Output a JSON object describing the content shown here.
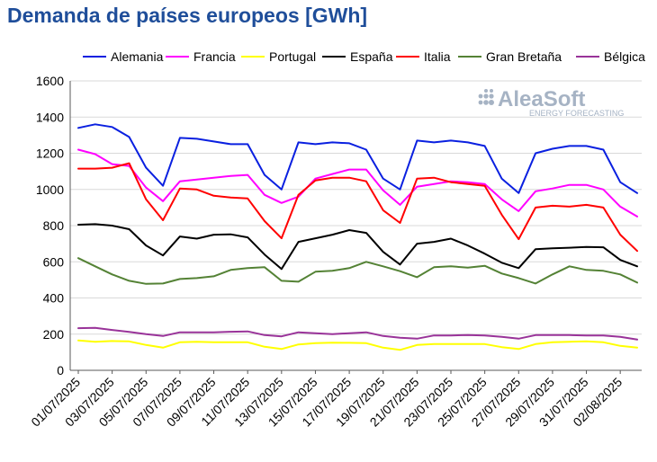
{
  "colors": {
    "title": "#1f4e9a",
    "grid": "#d9d9d9",
    "axis": "#595959",
    "text": "#000000",
    "logo": "#a6b3c4"
  },
  "logo": {
    "name": "AleaSoft",
    "tagline": "ENERGY FORECASTING"
  },
  "chart_data": {
    "type": "line",
    "title": "Demanda de países europeos [GWh]",
    "xlabel": "",
    "ylabel": "",
    "ylim": [
      0,
      1600
    ],
    "yticks": [
      0,
      200,
      400,
      600,
      800,
      1000,
      1200,
      1400,
      1600
    ],
    "grid": true,
    "legend_position": "top",
    "x": [
      "01/07/2025",
      "02/07/2025",
      "03/07/2025",
      "04/07/2025",
      "05/07/2025",
      "06/07/2025",
      "07/07/2025",
      "08/07/2025",
      "09/07/2025",
      "10/07/2025",
      "11/07/2025",
      "12/07/2025",
      "13/07/2025",
      "14/07/2025",
      "15/07/2025",
      "16/07/2025",
      "17/07/2025",
      "18/07/2025",
      "19/07/2025",
      "20/07/2025",
      "21/07/2025",
      "22/07/2025",
      "23/07/2025",
      "24/07/2025",
      "25/07/2025",
      "26/07/2025",
      "27/07/2025",
      "28/07/2025",
      "29/07/2025",
      "30/07/2025",
      "31/07/2025",
      "01/08/2025",
      "02/08/2025",
      "03/08/2025"
    ],
    "xtick_labels": [
      "01/07/2025",
      "03/07/2025",
      "05/07/2025",
      "07/07/2025",
      "09/07/2025",
      "11/07/2025",
      "13/07/2025",
      "15/07/2025",
      "17/07/2025",
      "19/07/2025",
      "21/07/2025",
      "23/07/2025",
      "25/07/2025",
      "27/07/2025",
      "29/07/2025",
      "31/07/2025",
      "02/08/2025"
    ],
    "series": [
      {
        "name": "Alemania",
        "color": "#0a20e0",
        "values": [
          1340,
          1360,
          1345,
          1290,
          1120,
          1020,
          1285,
          1280,
          1265,
          1250,
          1250,
          1080,
          1000,
          1260,
          1250,
          1260,
          1255,
          1220,
          1060,
          1000,
          1270,
          1260,
          1270,
          1260,
          1240,
          1060,
          980,
          1200,
          1225,
          1240,
          1240,
          1220,
          1040,
          980
        ]
      },
      {
        "name": "Francia",
        "color": "#ff00ff",
        "values": [
          1220,
          1195,
          1140,
          1130,
          1010,
          935,
          1045,
          1055,
          1065,
          1075,
          1080,
          970,
          925,
          960,
          1060,
          1085,
          1110,
          1110,
          995,
          915,
          1015,
          1030,
          1045,
          1040,
          1030,
          945,
          880,
          990,
          1005,
          1025,
          1025,
          1000,
          905,
          850
        ]
      },
      {
        "name": "Portugal",
        "color": "#ffff00",
        "values": [
          165,
          158,
          162,
          160,
          140,
          125,
          155,
          158,
          155,
          155,
          155,
          130,
          118,
          143,
          150,
          153,
          152,
          150,
          125,
          113,
          140,
          145,
          145,
          145,
          145,
          128,
          118,
          145,
          155,
          158,
          160,
          155,
          135,
          125
        ]
      },
      {
        "name": "España",
        "color": "#000000",
        "values": [
          805,
          808,
          800,
          780,
          690,
          635,
          740,
          728,
          750,
          752,
          735,
          640,
          560,
          710,
          730,
          750,
          775,
          760,
          655,
          585,
          700,
          710,
          728,
          690,
          645,
          595,
          565,
          670,
          675,
          678,
          682,
          680,
          610,
          575
        ]
      },
      {
        "name": "Italia",
        "color": "#ff0000",
        "values": [
          1115,
          1115,
          1120,
          1145,
          945,
          830,
          1005,
          1000,
          965,
          955,
          950,
          825,
          730,
          970,
          1050,
          1065,
          1065,
          1045,
          885,
          815,
          1060,
          1065,
          1040,
          1030,
          1020,
          860,
          725,
          900,
          910,
          905,
          915,
          900,
          750,
          660
        ]
      },
      {
        "name": "Gran Bretaña",
        "color": "#548235",
        "values": [
          620,
          575,
          530,
          495,
          478,
          480,
          505,
          510,
          520,
          555,
          565,
          570,
          495,
          490,
          545,
          550,
          565,
          600,
          575,
          548,
          515,
          570,
          575,
          568,
          578,
          535,
          510,
          480,
          530,
          575,
          555,
          550,
          530,
          485
        ]
      },
      {
        "name": "Bélgica",
        "color": "#993399",
        "values": [
          233,
          235,
          223,
          212,
          200,
          190,
          210,
          210,
          210,
          213,
          215,
          195,
          188,
          210,
          205,
          200,
          205,
          210,
          190,
          180,
          175,
          193,
          193,
          195,
          193,
          185,
          175,
          195,
          195,
          195,
          193,
          193,
          185,
          170
        ]
      }
    ]
  }
}
